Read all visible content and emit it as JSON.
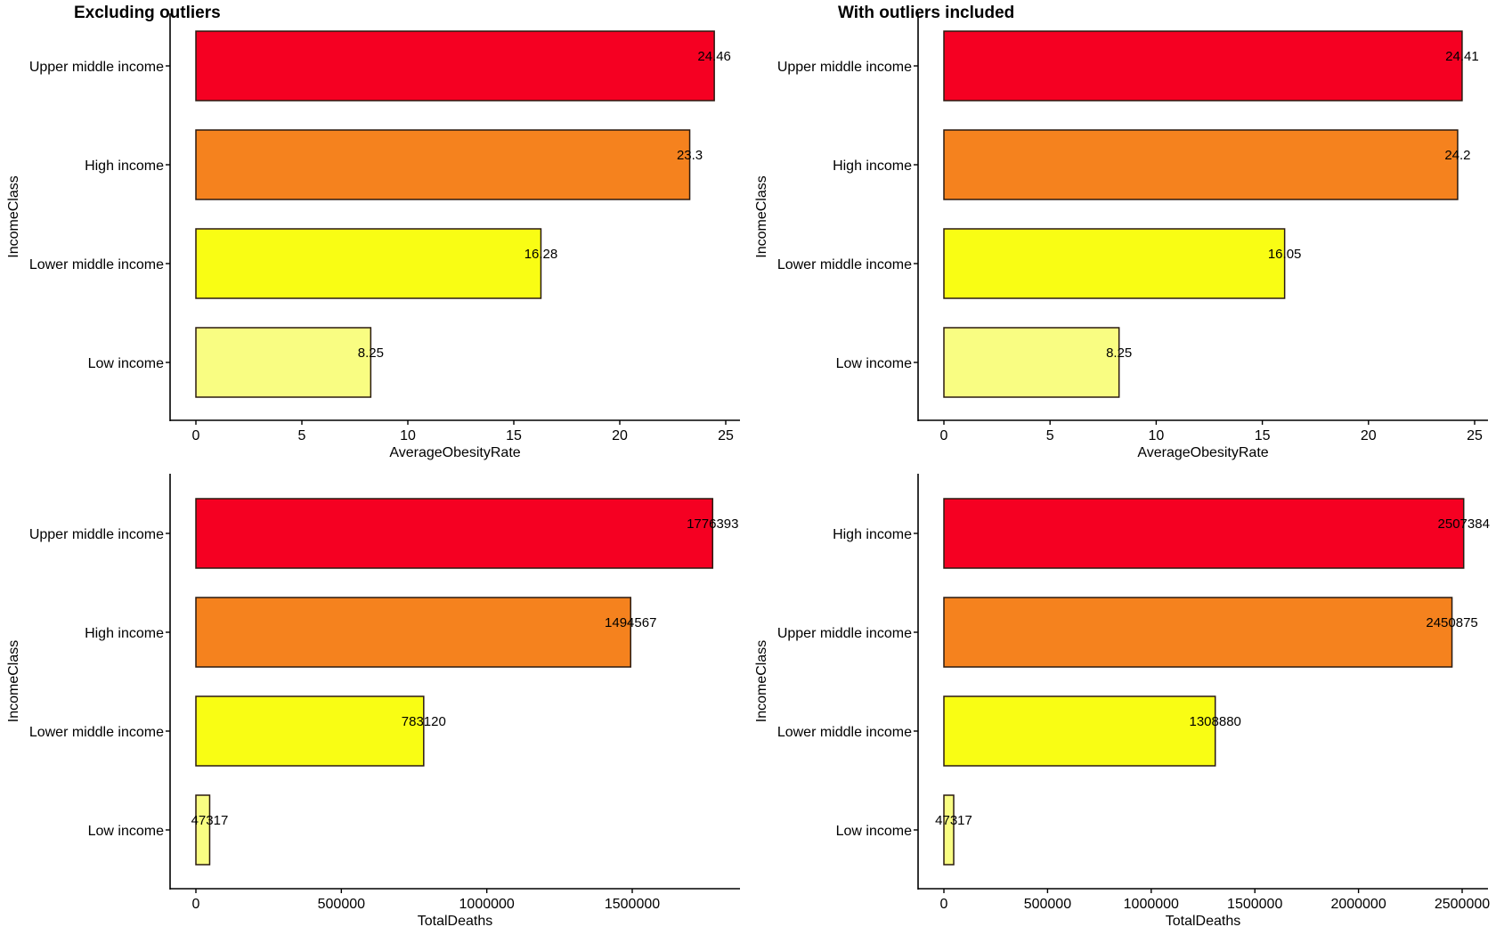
{
  "chart_data": [
    {
      "type": "bar",
      "orientation": "horizontal",
      "title": "Excluding outliers",
      "xlabel": "AverageObesityRate",
      "ylabel": "IncomeClass",
      "categories": [
        "Upper middle income",
        "High income",
        "Lower middle income",
        "Low income"
      ],
      "values": [
        24.46,
        23.3,
        16.28,
        8.25
      ],
      "data_labels": [
        "24.46",
        "23.3",
        "16.28",
        "8.25"
      ],
      "colors": [
        "#f50022",
        "#f5821e",
        "#f9fd14",
        "#f9fd82"
      ],
      "xticks": [
        0,
        5,
        10,
        15,
        20,
        25
      ],
      "xtick_labels": [
        "0",
        "5",
        "10",
        "15",
        "20",
        "25"
      ],
      "xlim": [
        -1.22,
        25.7
      ],
      "grid": false
    },
    {
      "type": "bar",
      "orientation": "horizontal",
      "title": "With outliers included",
      "xlabel": "AverageObesityRate",
      "ylabel": "IncomeClass",
      "categories": [
        "Upper middle income",
        "High income",
        "Lower middle income",
        "Low income"
      ],
      "values": [
        24.41,
        24.2,
        16.05,
        8.25
      ],
      "data_labels": [
        "24.41",
        "24.2",
        "16.05",
        "8.25"
      ],
      "colors": [
        "#f50022",
        "#f5821e",
        "#f9fd14",
        "#f9fd82"
      ],
      "xticks": [
        0,
        5,
        10,
        15,
        20,
        25
      ],
      "xtick_labels": [
        "0",
        "5",
        "10",
        "15",
        "20",
        "25"
      ],
      "xlim": [
        -1.22,
        25.7
      ],
      "grid": false
    },
    {
      "type": "bar",
      "orientation": "horizontal",
      "title": "",
      "xlabel": "TotalDeaths",
      "ylabel": "IncomeClass",
      "categories": [
        "Upper middle income",
        "High income",
        "Lower middle income",
        "Low income"
      ],
      "values": [
        1776393,
        1494567,
        783120,
        47317
      ],
      "data_labels": [
        "1776393",
        "1494567",
        "783120",
        "47317"
      ],
      "colors": [
        "#f50022",
        "#f5821e",
        "#f9fd14",
        "#f9fd82"
      ],
      "xticks": [
        0,
        500000,
        1000000,
        1500000
      ],
      "xtick_labels": [
        "0",
        "500000",
        "1000000",
        "1500000"
      ],
      "xlim": [
        -88820,
        1865213
      ],
      "grid": false
    },
    {
      "type": "bar",
      "orientation": "horizontal",
      "title": "",
      "xlabel": "TotalDeaths",
      "ylabel": "IncomeClass",
      "categories": [
        "High income",
        "Upper middle income",
        "Lower middle income",
        "Low income"
      ],
      "values": [
        2507384,
        2450875,
        1308880,
        47317
      ],
      "data_labels": [
        "2507384",
        "2450875",
        "1308880",
        "47317"
      ],
      "colors": [
        "#f50022",
        "#f5821e",
        "#f9fd14",
        "#f9fd82"
      ],
      "xticks": [
        0,
        500000,
        1000000,
        1500000,
        2000000,
        2500000
      ],
      "xtick_labels": [
        "0",
        "500000",
        "1000000",
        "1500000",
        "2000000",
        "2500000"
      ],
      "xlim": [
        -125369,
        2632753
      ],
      "grid": false
    }
  ]
}
